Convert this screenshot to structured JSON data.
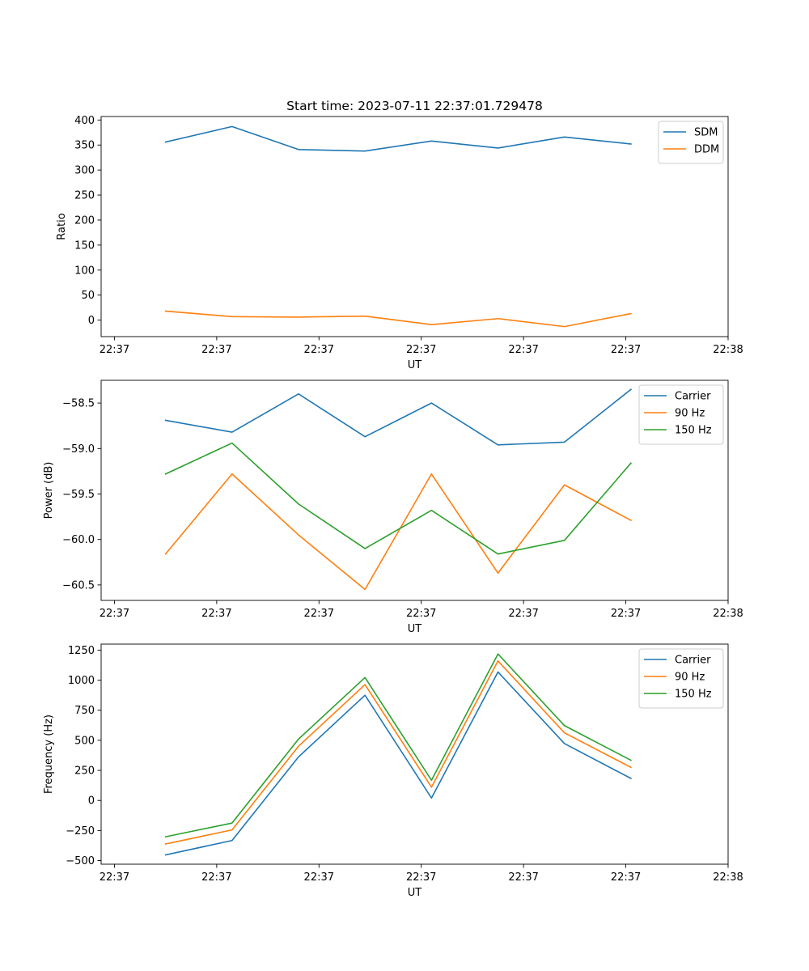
{
  "figure_title": "Start time: 2023-07-11 22:37:01.729478",
  "chart_data": [
    {
      "type": "line",
      "title": "Start time: 2023-07-11 22:37:01.729478",
      "xlabel": "UT",
      "ylabel": "Ratio",
      "x_ticks": [
        0,
        1,
        2,
        3,
        4,
        5,
        6
      ],
      "x_tick_labels": [
        "22:37",
        "22:37",
        "22:37",
        "22:37",
        "22:37",
        "22:37",
        "22:38"
      ],
      "x": [
        0.5,
        1.15,
        1.8,
        2.45,
        3.1,
        3.75,
        4.4,
        5.05
      ],
      "xlim": [
        -0.13,
        6.0
      ],
      "ylim": [
        -33,
        407
      ],
      "y_ticks": [
        0,
        50,
        100,
        150,
        200,
        250,
        300,
        350,
        400
      ],
      "y_tick_labels": [
        "0",
        "50",
        "100",
        "150",
        "200",
        "250",
        "300",
        "350",
        "400"
      ],
      "legend": "top-right",
      "series": [
        {
          "name": "SDM",
          "color": "#1f77b4",
          "values": [
            356,
            387,
            341,
            338,
            358,
            344,
            366,
            352
          ]
        },
        {
          "name": "DDM",
          "color": "#ff7f0e",
          "values": [
            18,
            7,
            6,
            8,
            -9,
            3,
            -13,
            13
          ]
        }
      ]
    },
    {
      "type": "line",
      "title": "",
      "xlabel": "UT",
      "ylabel": "Power (dB)",
      "x_ticks": [
        0,
        1,
        2,
        3,
        4,
        5,
        6
      ],
      "x_tick_labels": [
        "22:37",
        "22:37",
        "22:37",
        "22:37",
        "22:37",
        "22:37",
        "22:38"
      ],
      "x": [
        0.5,
        1.15,
        1.8,
        2.45,
        3.1,
        3.75,
        4.4,
        5.05
      ],
      "xlim": [
        -0.13,
        6.0
      ],
      "ylim": [
        -60.67,
        -58.25
      ],
      "y_ticks": [
        -60.5,
        -60.0,
        -59.5,
        -59.0,
        -58.5
      ],
      "y_tick_labels": [
        "−60.5",
        "−60.0",
        "−59.5",
        "−59.0",
        "−58.5"
      ],
      "legend": "top-right",
      "series": [
        {
          "name": "Carrier",
          "color": "#1f77b4",
          "values": [
            -58.69,
            -58.82,
            -58.4,
            -58.87,
            -58.5,
            -58.96,
            -58.93,
            -58.35
          ]
        },
        {
          "name": "90 Hz",
          "color": "#ff7f0e",
          "values": [
            -60.16,
            -59.28,
            -59.95,
            -60.55,
            -59.28,
            -60.37,
            -59.4,
            -59.79
          ]
        },
        {
          "name": "150 Hz",
          "color": "#2ca02c",
          "values": [
            -59.28,
            -58.94,
            -59.61,
            -60.1,
            -59.68,
            -60.16,
            -60.01,
            -59.16
          ]
        }
      ]
    },
    {
      "type": "line",
      "title": "",
      "xlabel": "UT",
      "ylabel": "Frequency (Hz)",
      "x_ticks": [
        0,
        1,
        2,
        3,
        4,
        5,
        6
      ],
      "x_tick_labels": [
        "22:37",
        "22:37",
        "22:37",
        "22:37",
        "22:37",
        "22:37",
        "22:38"
      ],
      "x": [
        0.5,
        1.15,
        1.8,
        2.45,
        3.1,
        3.75,
        4.4,
        5.05
      ],
      "xlim": [
        -0.13,
        6.0
      ],
      "ylim": [
        -530,
        1300
      ],
      "y_ticks": [
        -500,
        -250,
        0,
        250,
        500,
        750,
        1000,
        1250
      ],
      "y_tick_labels": [
        "−500",
        "−250",
        "0",
        "250",
        "500",
        "750",
        "1000",
        "1250"
      ],
      "legend": "top-right",
      "series": [
        {
          "name": "Carrier",
          "color": "#1f77b4",
          "values": [
            -453,
            -333,
            362,
            875,
            20,
            1068,
            473,
            183
          ]
        },
        {
          "name": "90 Hz",
          "color": "#ff7f0e",
          "values": [
            -362,
            -245,
            451,
            963,
            110,
            1160,
            562,
            275
          ]
        },
        {
          "name": "150 Hz",
          "color": "#2ca02c",
          "values": [
            -302,
            -188,
            510,
            1022,
            168,
            1218,
            622,
            334
          ]
        }
      ]
    }
  ]
}
